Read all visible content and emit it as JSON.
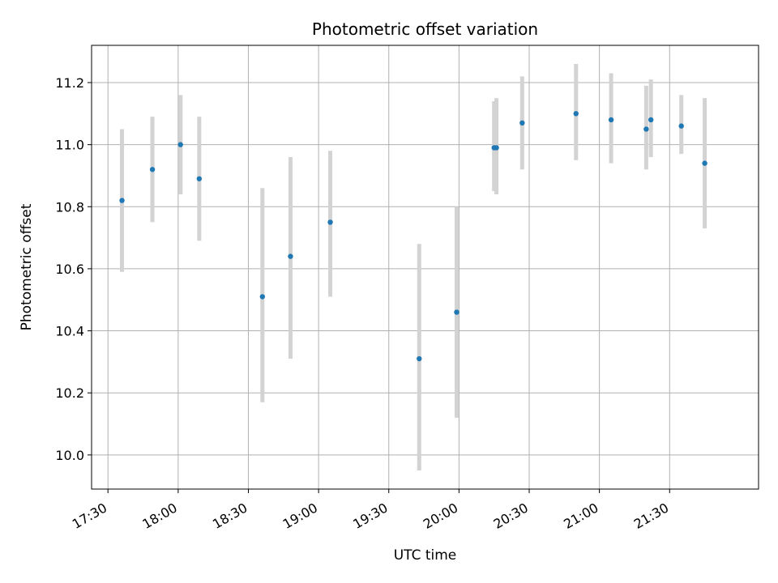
{
  "chart_data": {
    "type": "scatter",
    "title": "Photometric offset variation",
    "xlabel": "UTC time",
    "ylabel": "Photometric offset",
    "x_ticks": [
      "17:30",
      "18:00",
      "18:30",
      "19:00",
      "19:30",
      "20:00",
      "20:30",
      "21:00",
      "21:30"
    ],
    "y_ticks": [
      "10.0",
      "10.2",
      "10.4",
      "10.6",
      "10.8",
      "11.0",
      "11.2"
    ],
    "xlim": [
      "17:23",
      "22:08"
    ],
    "ylim": [
      9.89,
      11.32
    ],
    "grid": true,
    "colors": {
      "point": "#1f77b4",
      "errorbar": "#d3d3d3",
      "grid": "#b0b0b0"
    },
    "series": [
      {
        "points": [
          {
            "x": "17:36",
            "y": 10.82,
            "ylow": 10.59,
            "yhigh": 11.05
          },
          {
            "x": "17:49",
            "y": 10.92,
            "ylow": 10.75,
            "yhigh": 11.09
          },
          {
            "x": "18:01",
            "y": 11.0,
            "ylow": 10.84,
            "yhigh": 11.16
          },
          {
            "x": "18:09",
            "y": 10.89,
            "ylow": 10.69,
            "yhigh": 11.09
          },
          {
            "x": "18:36",
            "y": 10.51,
            "ylow": 10.17,
            "yhigh": 10.86
          },
          {
            "x": "18:48",
            "y": 10.64,
            "ylow": 10.31,
            "yhigh": 10.96
          },
          {
            "x": "19:05",
            "y": 10.75,
            "ylow": 10.51,
            "yhigh": 10.98
          },
          {
            "x": "19:43",
            "y": 10.31,
            "ylow": 9.95,
            "yhigh": 10.68
          },
          {
            "x": "19:59",
            "y": 10.46,
            "ylow": 10.12,
            "yhigh": 10.8
          },
          {
            "x": "20:15",
            "y": 10.99,
            "ylow": 10.85,
            "yhigh": 11.14
          },
          {
            "x": "20:16",
            "y": 10.99,
            "ylow": 10.84,
            "yhigh": 11.15
          },
          {
            "x": "20:27",
            "y": 11.07,
            "ylow": 10.92,
            "yhigh": 11.22
          },
          {
            "x": "20:50",
            "y": 11.1,
            "ylow": 10.95,
            "yhigh": 11.26
          },
          {
            "x": "21:05",
            "y": 11.08,
            "ylow": 10.94,
            "yhigh": 11.23
          },
          {
            "x": "21:20",
            "y": 11.05,
            "ylow": 10.92,
            "yhigh": 11.19
          },
          {
            "x": "21:22",
            "y": 11.08,
            "ylow": 10.96,
            "yhigh": 11.21
          },
          {
            "x": "21:35",
            "y": 11.06,
            "ylow": 10.97,
            "yhigh": 11.16
          },
          {
            "x": "21:45",
            "y": 10.94,
            "ylow": 10.73,
            "yhigh": 11.15
          }
        ]
      }
    ]
  }
}
